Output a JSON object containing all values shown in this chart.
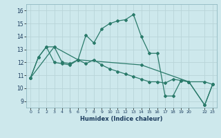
{
  "xlabel": "Humidex (Indice chaleur)",
  "bg_color": "#cde8ec",
  "line_color": "#2a7a6a",
  "grid_color": "#b8d4d8",
  "xlim": [
    -0.5,
    23.5
  ],
  "ylim": [
    8.5,
    16.5
  ],
  "xticks": [
    0,
    1,
    2,
    3,
    4,
    5,
    6,
    7,
    8,
    9,
    10,
    11,
    12,
    13,
    14,
    15,
    16,
    17,
    18,
    19,
    20,
    22,
    23
  ],
  "yticks": [
    9,
    10,
    11,
    12,
    13,
    14,
    15,
    16
  ],
  "series": [
    {
      "x": [
        0,
        1,
        2,
        3,
        4,
        5,
        6,
        7,
        8,
        9,
        10,
        11,
        12,
        13,
        14,
        15,
        16,
        17,
        18,
        19,
        20,
        22,
        23
      ],
      "y": [
        10.8,
        12.4,
        13.2,
        12.0,
        11.9,
        11.8,
        12.2,
        14.1,
        13.5,
        14.6,
        15.0,
        15.2,
        15.3,
        15.7,
        14.0,
        12.7,
        12.7,
        9.4,
        9.4,
        10.6,
        10.5,
        8.7,
        10.3
      ]
    },
    {
      "x": [
        0,
        1,
        2,
        3,
        4,
        5,
        6,
        7,
        8,
        9,
        10,
        11,
        12,
        13,
        14,
        15,
        16,
        17,
        18,
        19,
        20,
        22,
        23
      ],
      "y": [
        10.8,
        12.4,
        13.2,
        13.2,
        12.0,
        11.9,
        12.2,
        11.9,
        12.2,
        11.8,
        11.5,
        11.3,
        11.1,
        10.9,
        10.7,
        10.5,
        10.5,
        10.4,
        10.7,
        10.6,
        10.5,
        10.5,
        10.3
      ]
    },
    {
      "x": [
        0,
        3,
        6,
        14,
        20,
        22,
        23
      ],
      "y": [
        10.8,
        13.2,
        12.2,
        11.8,
        10.5,
        8.7,
        10.3
      ]
    }
  ]
}
